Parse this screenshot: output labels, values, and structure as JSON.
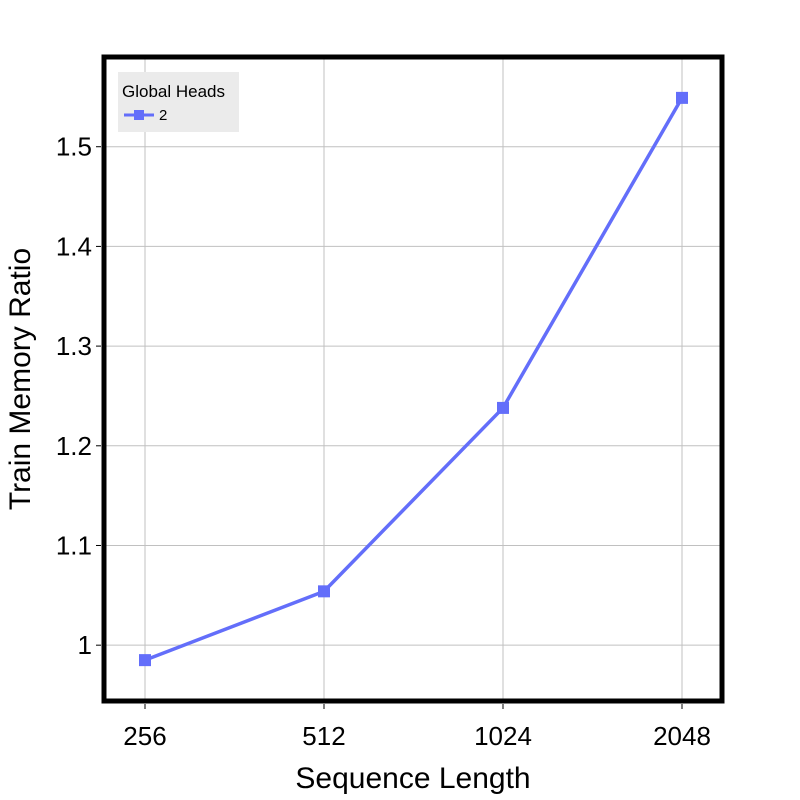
{
  "chart_data": {
    "type": "line",
    "x_type": "categorical",
    "categories": [
      "256",
      "512",
      "1024",
      "2048"
    ],
    "series": [
      {
        "name": "2",
        "values": [
          0.985,
          1.054,
          1.238,
          1.549
        ],
        "color": "#636efa",
        "marker": "square"
      }
    ],
    "xlabel": "Sequence Length",
    "ylabel": "Train Memory Ratio",
    "ylim": [
      0.944,
      1.59
    ],
    "yticks": [
      1,
      1.1,
      1.2,
      1.3,
      1.4,
      1.5
    ],
    "ytick_labels": [
      "1",
      "1.1",
      "1.2",
      "1.3",
      "1.4",
      "1.5"
    ],
    "xtick_labels": [
      "256",
      "512",
      "1024",
      "2048"
    ],
    "grid": true,
    "legend": {
      "title": "Global Heads",
      "placement": "top-left",
      "background": "#ebebeb"
    },
    "frame_color": "#000000",
    "grid_color": "#c0c0c0"
  }
}
